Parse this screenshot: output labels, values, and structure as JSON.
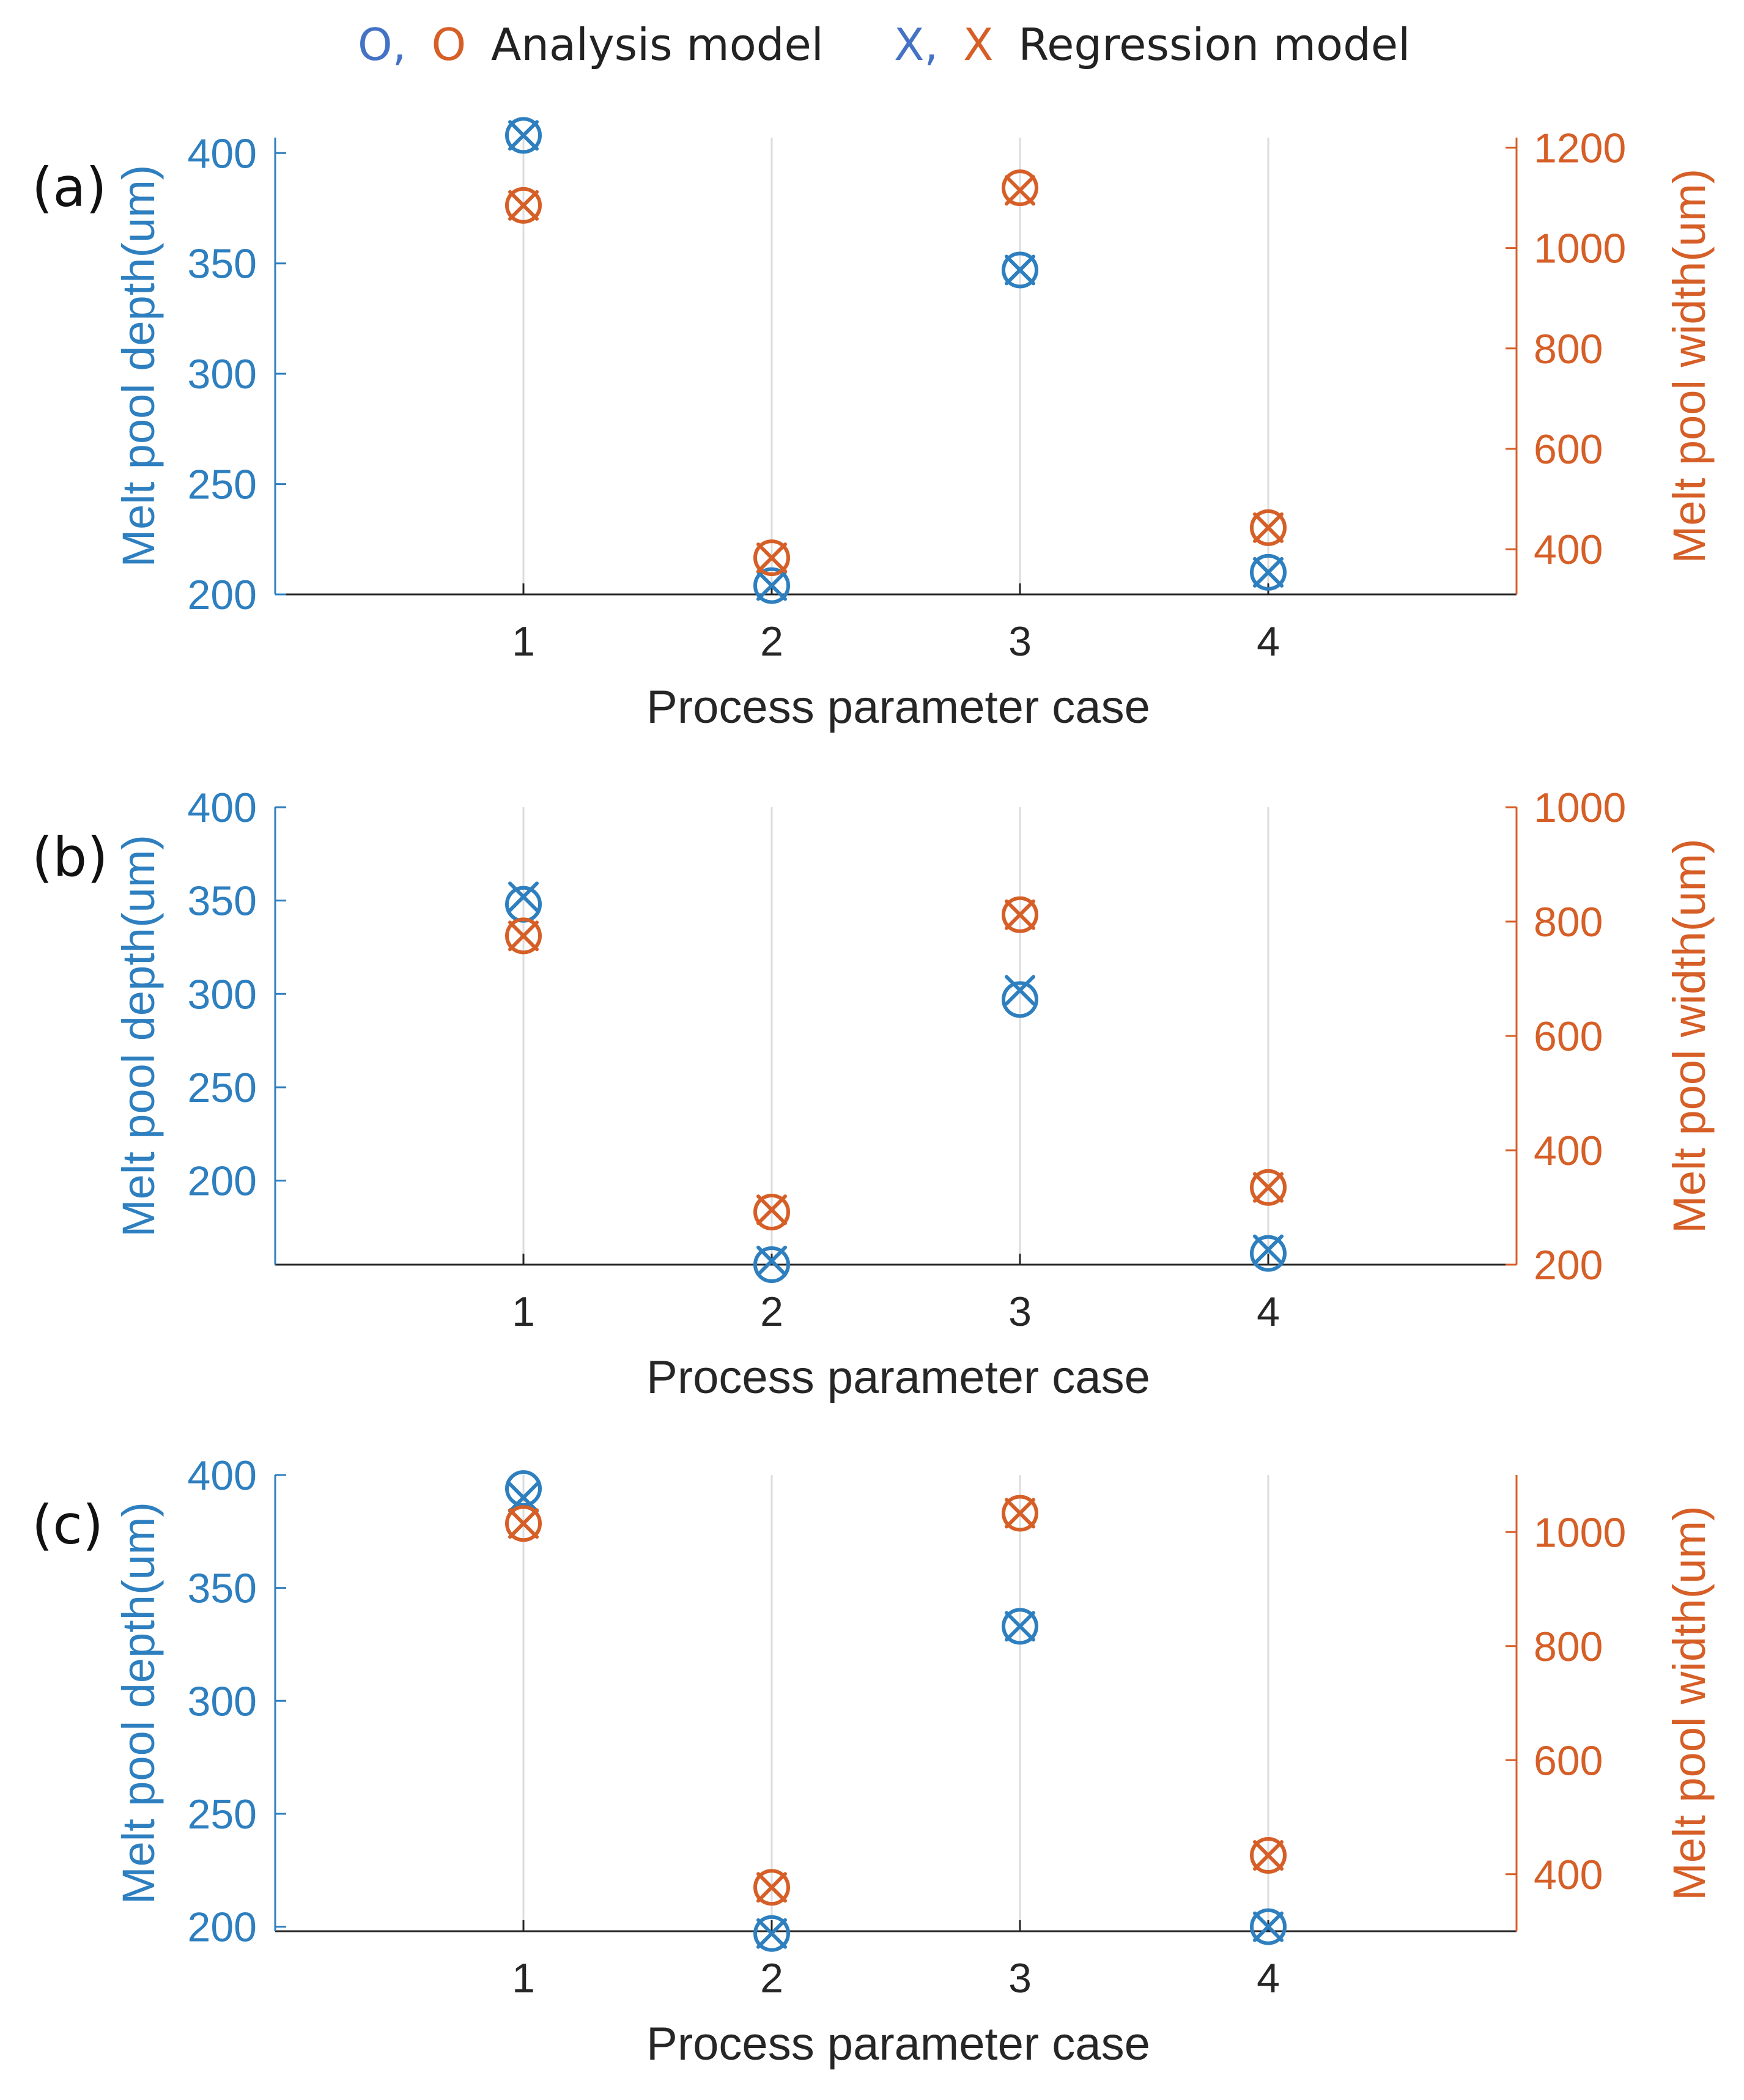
{
  "legend": {
    "analysis_prefix_1": "O,",
    "analysis_prefix_2": "O",
    "analysis_label": "Analysis model",
    "regression_prefix_1": "X,",
    "regression_prefix_2": "X",
    "regression_label": "Regression model"
  },
  "colors": {
    "depth": "#2e7fbf",
    "width": "#d65f27",
    "legend_blue": "#4472c4",
    "legend_orange": "#d65f27",
    "axis": "#262626",
    "grid": "#dcdcdc"
  },
  "chart_data": [
    {
      "type": "scatter",
      "panel_label": "(a)",
      "xlabel": "Process parameter case",
      "ylabel_left": "Melt pool depth(um)",
      "ylabel_right": "Melt pool width(um)",
      "x_ticks": [
        "1",
        "2",
        "3",
        "4"
      ],
      "xlim": [
        0,
        5
      ],
      "ylim_left": [
        200,
        407
      ],
      "yticks_left": [
        200,
        250,
        300,
        350,
        400
      ],
      "ylim_right": [
        310,
        1220
      ],
      "yticks_right": [
        400,
        600,
        800,
        1000,
        1200
      ],
      "grid": true,
      "series": [
        {
          "name": "Depth - Analysis model",
          "axis": "left",
          "marker": "o",
          "x": [
            1,
            2,
            3,
            4
          ],
          "values": [
            408,
            204,
            347,
            210
          ]
        },
        {
          "name": "Depth - Regression model",
          "axis": "left",
          "marker": "x",
          "x": [
            1,
            2,
            3,
            4
          ],
          "values": [
            408,
            204,
            347,
            210
          ]
        },
        {
          "name": "Width - Analysis model",
          "axis": "right",
          "marker": "o",
          "x": [
            1,
            2,
            3,
            4
          ],
          "values": [
            1085,
            383,
            1120,
            443
          ]
        },
        {
          "name": "Width - Regression model",
          "axis": "right",
          "marker": "x",
          "x": [
            1,
            2,
            3,
            4
          ],
          "values": [
            1085,
            383,
            1115,
            443
          ]
        }
      ]
    },
    {
      "type": "scatter",
      "panel_label": "(b)",
      "xlabel": "Process parameter case",
      "ylabel_left": "Melt pool depth(um)",
      "ylabel_right": "Melt pool width(um)",
      "x_ticks": [
        "1",
        "2",
        "3",
        "4"
      ],
      "xlim": [
        0,
        5
      ],
      "ylim_left": [
        155,
        400
      ],
      "yticks_left": [
        200,
        250,
        300,
        350,
        400
      ],
      "ylim_right": [
        200,
        1000
      ],
      "yticks_right": [
        200,
        400,
        600,
        800,
        1000
      ],
      "grid": true,
      "series": [
        {
          "name": "Depth - Analysis model",
          "axis": "left",
          "marker": "o",
          "x": [
            1,
            2,
            3,
            4
          ],
          "values": [
            348,
            155,
            297,
            161
          ]
        },
        {
          "name": "Depth - Regression model",
          "axis": "left",
          "marker": "x",
          "x": [
            1,
            2,
            3,
            4
          ],
          "values": [
            352,
            157,
            302,
            163
          ]
        },
        {
          "name": "Width - Analysis model",
          "axis": "right",
          "marker": "o",
          "x": [
            1,
            2,
            3,
            4
          ],
          "values": [
            775,
            292,
            812,
            335
          ]
        },
        {
          "name": "Width - Regression model",
          "axis": "right",
          "marker": "x",
          "x": [
            1,
            2,
            3,
            4
          ],
          "values": [
            775,
            296,
            812,
            335
          ]
        }
      ]
    },
    {
      "type": "scatter",
      "panel_label": "(c)",
      "xlabel": "Process parameter case",
      "ylabel_left": "Melt pool depth(um)",
      "ylabel_right": "Melt pool width(um)",
      "x_ticks": [
        "1",
        "2",
        "3",
        "4"
      ],
      "xlim": [
        0,
        5
      ],
      "ylim_left": [
        198,
        400
      ],
      "yticks_left": [
        200,
        250,
        300,
        350,
        400
      ],
      "ylim_right": [
        300,
        1100
      ],
      "yticks_right": [
        400,
        600,
        800,
        1000
      ],
      "grid": true,
      "series": [
        {
          "name": "Depth - Analysis model",
          "axis": "left",
          "marker": "o",
          "x": [
            1,
            2,
            3,
            4
          ],
          "values": [
            394,
            197,
            333,
            200
          ]
        },
        {
          "name": "Depth - Regression model",
          "axis": "left",
          "marker": "x",
          "x": [
            1,
            2,
            3,
            4
          ],
          "values": [
            390,
            197,
            333,
            200
          ]
        },
        {
          "name": "Width - Analysis model",
          "axis": "right",
          "marker": "o",
          "x": [
            1,
            2,
            3,
            4
          ],
          "values": [
            1015,
            377,
            1033,
            433
          ]
        },
        {
          "name": "Width - Regression model",
          "axis": "right",
          "marker": "x",
          "x": [
            1,
            2,
            3,
            4
          ],
          "values": [
            1015,
            377,
            1033,
            433
          ]
        }
      ]
    }
  ]
}
